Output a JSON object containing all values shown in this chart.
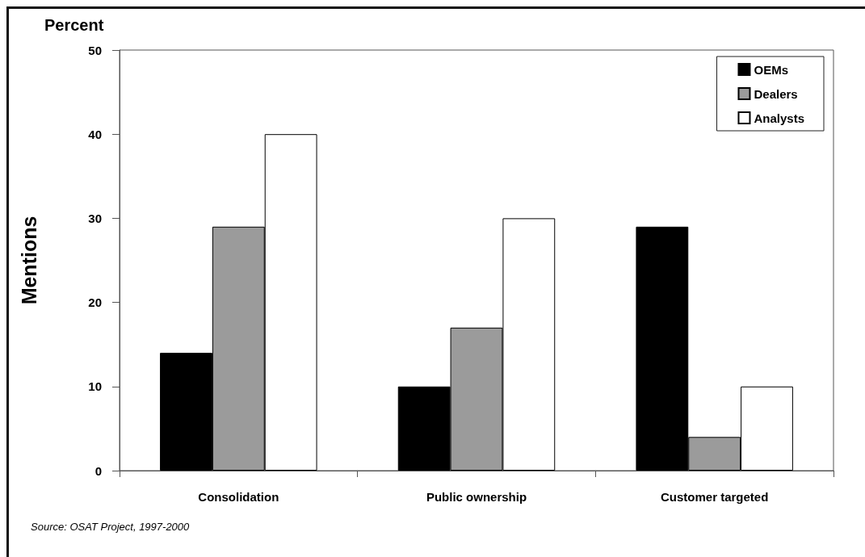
{
  "chart_data": {
    "type": "bar",
    "title": "Percent",
    "ylabel": "Mentions",
    "categories": [
      "Consolidation",
      "Public ownership",
      "Customer targeted"
    ],
    "series": [
      {
        "name": "OEMs",
        "color": "#000000",
        "values": [
          14,
          10,
          29
        ]
      },
      {
        "name": "Dealers",
        "color": "#9b9b9b",
        "values": [
          29,
          17,
          4
        ]
      },
      {
        "name": "Analysts",
        "color": "#ffffff",
        "values": [
          40,
          30,
          10
        ]
      }
    ],
    "ylim": [
      0,
      50
    ],
    "yticks": [
      0,
      10,
      20,
      30,
      40,
      50
    ],
    "grid": false,
    "legend": "top right",
    "annotations": [
      "Source: OSAT Project, 1997-2000"
    ]
  }
}
